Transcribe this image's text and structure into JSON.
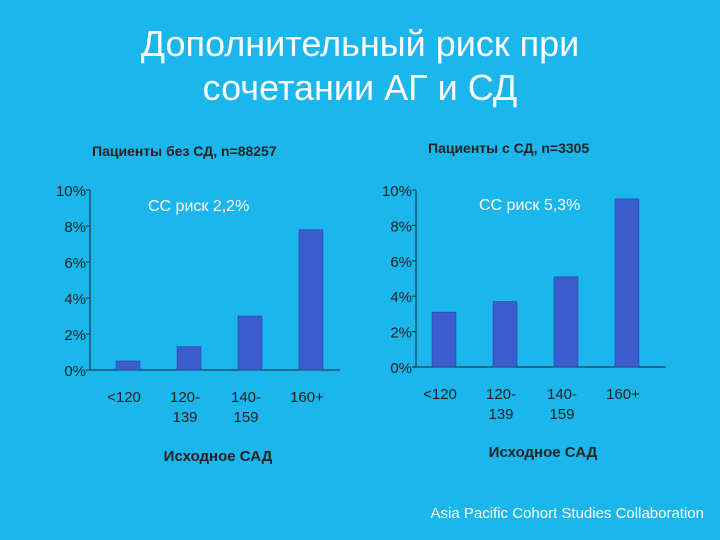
{
  "title": {
    "line1": "Дополнительный риск при",
    "line2": "сочетании АГ и СД"
  },
  "source": "Asia Pacific Cohort Studies Collaboration",
  "colors": {
    "background": "#1AB6EC",
    "bar": "#3A5CCC",
    "text": "#222222"
  },
  "chart_data": [
    {
      "type": "bar",
      "title": "Пациенты без СД, n=88257",
      "annotation": "СС риск 2,2%",
      "categories": [
        "<120",
        "120-\n139",
        "140-\n159",
        "160+"
      ],
      "values": [
        0.5,
        1.3,
        3.0,
        7.8
      ],
      "xlabel": "Исходное САД",
      "ylabel": "",
      "ylim": [
        0,
        10
      ],
      "yticks": [
        "0%",
        "2%",
        "4%",
        "6%",
        "8%",
        "10%"
      ],
      "grid": false
    },
    {
      "type": "bar",
      "title": "Пациенты с СД, n=3305",
      "annotation": "СС риск 5,3%",
      "categories": [
        "<120",
        "120-\n139",
        "140-\n159",
        "160+"
      ],
      "values": [
        3.1,
        3.7,
        5.1,
        9.5
      ],
      "xlabel": "Исходное САД",
      "ylabel": "",
      "ylim": [
        0,
        10
      ],
      "yticks": [
        "0%",
        "2%",
        "4%",
        "6%",
        "8%",
        "10%"
      ],
      "grid": false
    }
  ]
}
